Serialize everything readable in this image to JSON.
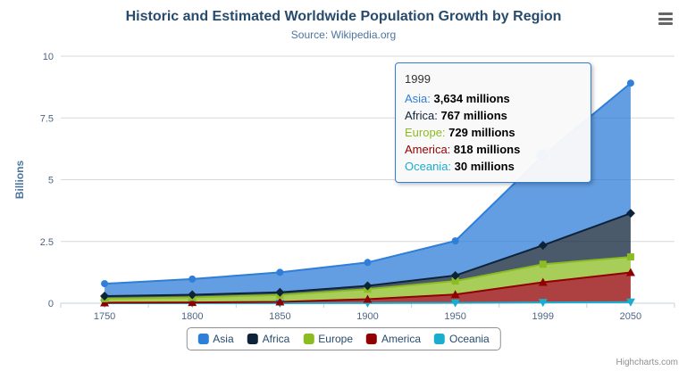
{
  "chart_data": {
    "type": "area",
    "stacking": "normal",
    "title": "Historic and Estimated Worldwide Population Growth by Region",
    "subtitle": "Source: Wikipedia.org",
    "ylabel": "Billions",
    "xlabel": "",
    "ylim": [
      0,
      10
    ],
    "yticks": [
      0,
      2.5,
      5,
      7.5,
      10
    ],
    "grid": true,
    "legend_position": "bottom",
    "categories": [
      "1750",
      "1800",
      "1850",
      "1900",
      "1950",
      "1999",
      "2050"
    ],
    "units": "millions",
    "series": [
      {
        "name": "Asia",
        "color": "#2f7ed8",
        "marker": "circle",
        "values_millions": [
          502,
          635,
          809,
          947,
          1402,
          3634,
          5268
        ]
      },
      {
        "name": "Africa",
        "color": "#0d233a",
        "marker": "diamond",
        "values_millions": [
          106,
          107,
          111,
          133,
          221,
          767,
          1766
        ]
      },
      {
        "name": "Europe",
        "color": "#8bbc21",
        "marker": "square",
        "values_millions": [
          163,
          203,
          276,
          408,
          547,
          729,
          628
        ]
      },
      {
        "name": "America",
        "color": "#910000",
        "marker": "triangle",
        "values_millions": [
          18,
          31,
          54,
          156,
          339,
          818,
          1201
        ]
      },
      {
        "name": "Oceania",
        "color": "#1aadce",
        "marker": "triangle-down",
        "values_millions": [
          2,
          2,
          2,
          6,
          13,
          30,
          46
        ]
      }
    ],
    "stack_order_bottom_to_top": [
      "Oceania",
      "America",
      "Europe",
      "Africa",
      "Asia"
    ]
  },
  "tooltip": {
    "header": "1999",
    "border_color": "#2f7ed8",
    "lines": [
      {
        "name": "Asia",
        "color": "#2f7ed8",
        "value": "3,634 millions"
      },
      {
        "name": "Africa",
        "color": "#0d233a",
        "value": "767 millions"
      },
      {
        "name": "Europe",
        "color": "#8bbc21",
        "value": "729 millions"
      },
      {
        "name": "America",
        "color": "#910000",
        "value": "818 millions"
      },
      {
        "name": "Oceania",
        "color": "#1aadce",
        "value": "30 millions"
      }
    ]
  },
  "hover_point": {
    "series": "Asia",
    "category": "1999"
  },
  "icons": {
    "export_menu": "hamburger-icon"
  },
  "credits": {
    "label": "Highcharts.com"
  }
}
